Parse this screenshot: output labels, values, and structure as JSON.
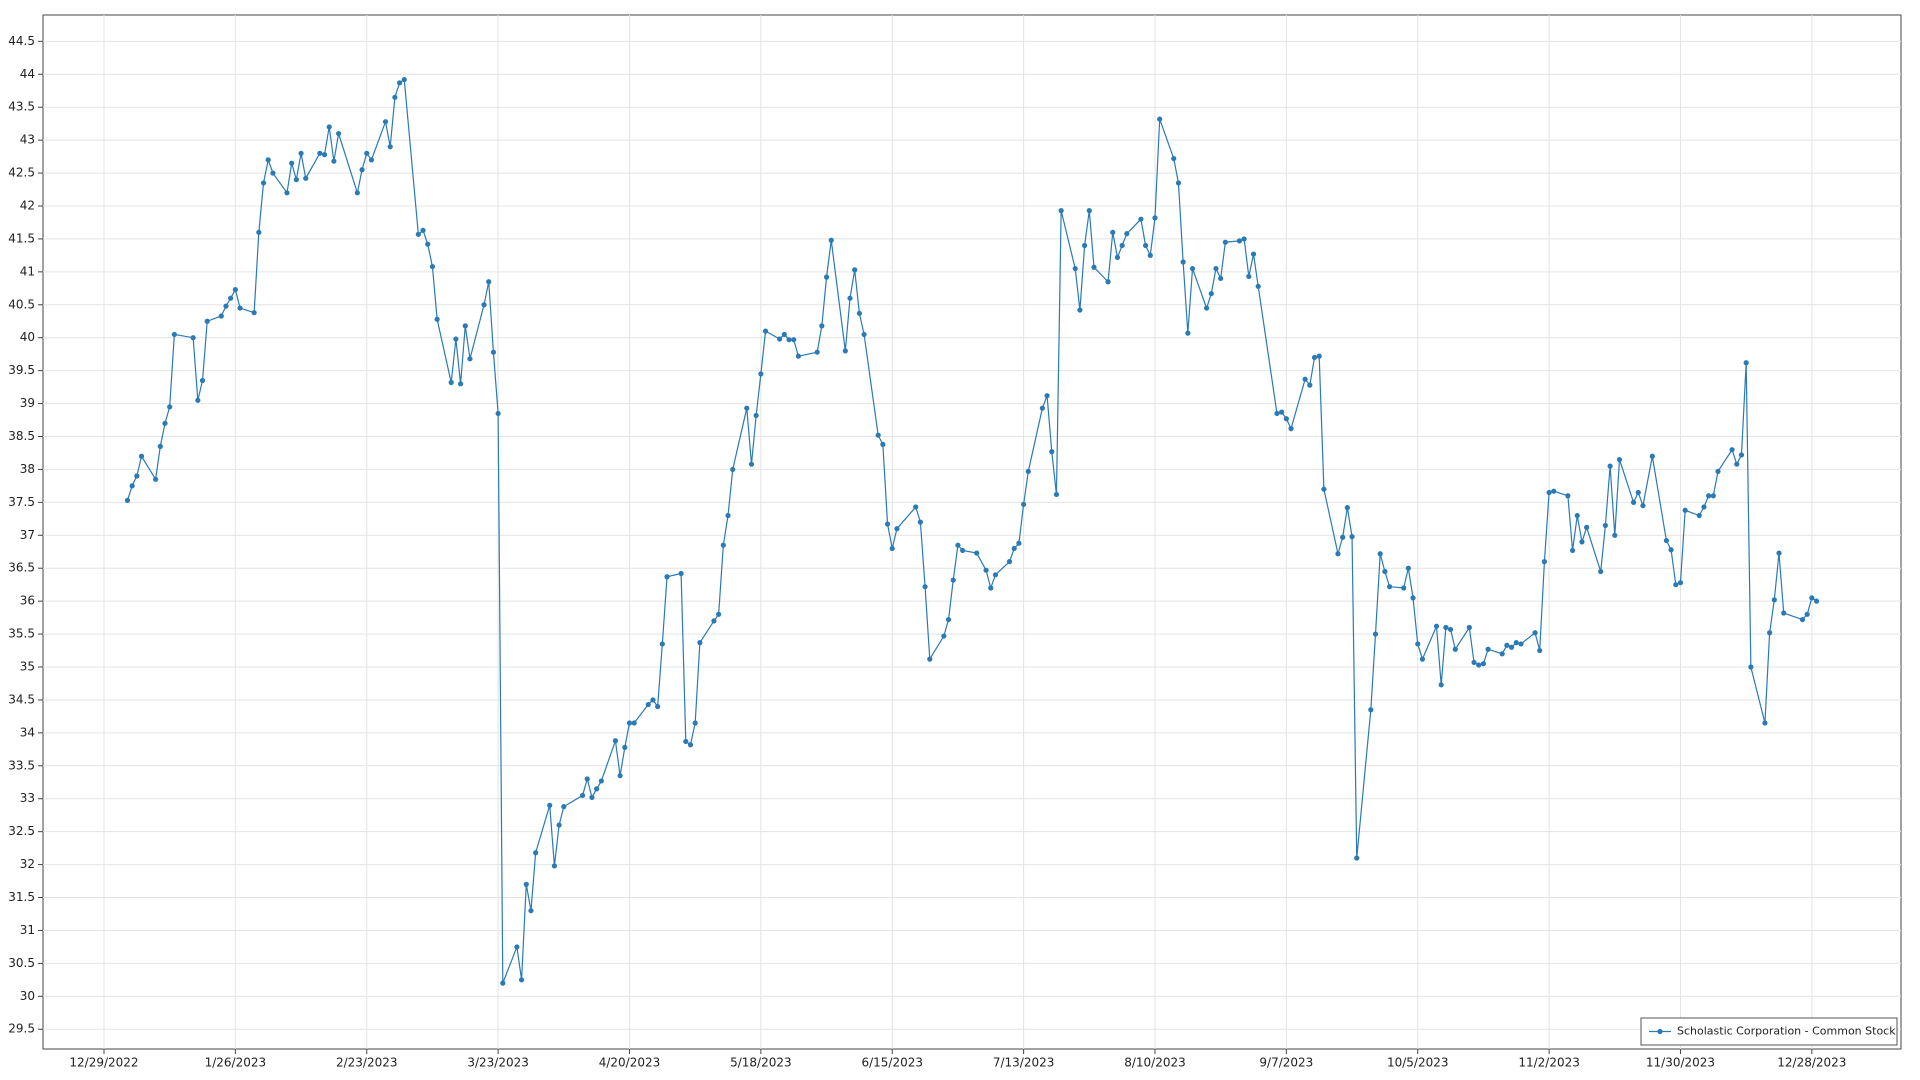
{
  "chart_data": {
    "type": "line",
    "x": [
      "1/3/2023",
      "1/4/2023",
      "1/5/2023",
      "1/6/2023",
      "1/9/2023",
      "1/10/2023",
      "1/11/2023",
      "1/12/2023",
      "1/13/2023",
      "1/17/2023",
      "1/18/2023",
      "1/19/2023",
      "1/20/2023",
      "1/23/2023",
      "1/24/2023",
      "1/25/2023",
      "1/26/2023",
      "1/27/2023",
      "1/30/2023",
      "1/31/2023",
      "2/1/2023",
      "2/2/2023",
      "2/3/2023",
      "2/6/2023",
      "2/7/2023",
      "2/8/2023",
      "2/9/2023",
      "2/10/2023",
      "2/13/2023",
      "2/14/2023",
      "2/15/2023",
      "2/16/2023",
      "2/17/2023",
      "2/21/2023",
      "2/22/2023",
      "2/23/2023",
      "2/24/2023",
      "2/27/2023",
      "2/28/2023",
      "3/1/2023",
      "3/2/2023",
      "3/3/2023",
      "3/6/2023",
      "3/7/2023",
      "3/8/2023",
      "3/9/2023",
      "3/10/2023",
      "3/13/2023",
      "3/14/2023",
      "3/15/2023",
      "3/16/2023",
      "3/17/2023",
      "3/20/2023",
      "3/21/2023",
      "3/22/2023",
      "3/23/2023",
      "3/24/2023",
      "3/27/2023",
      "3/28/2023",
      "3/29/2023",
      "3/30/2023",
      "3/31/2023",
      "4/3/2023",
      "4/4/2023",
      "4/5/2023",
      "4/6/2023",
      "4/10/2023",
      "4/11/2023",
      "4/12/2023",
      "4/13/2023",
      "4/14/2023",
      "4/17/2023",
      "4/18/2023",
      "4/19/2023",
      "4/20/2023",
      "4/21/2023",
      "4/24/2023",
      "4/25/2023",
      "4/26/2023",
      "4/27/2023",
      "4/28/2023",
      "5/1/2023",
      "5/2/2023",
      "5/3/2023",
      "5/4/2023",
      "5/5/2023",
      "5/8/2023",
      "5/9/2023",
      "5/10/2023",
      "5/11/2023",
      "5/12/2023",
      "5/15/2023",
      "5/16/2023",
      "5/17/2023",
      "5/18/2023",
      "5/19/2023",
      "5/22/2023",
      "5/23/2023",
      "5/24/2023",
      "5/25/2023",
      "5/26/2023",
      "5/30/2023",
      "5/31/2023",
      "6/1/2023",
      "6/2/2023",
      "6/5/2023",
      "6/6/2023",
      "6/7/2023",
      "6/8/2023",
      "6/9/2023",
      "6/12/2023",
      "6/13/2023",
      "6/14/2023",
      "6/15/2023",
      "6/16/2023",
      "6/20/2023",
      "6/21/2023",
      "6/22/2023",
      "6/23/2023",
      "6/26/2023",
      "6/27/2023",
      "6/28/2023",
      "6/29/2023",
      "6/30/2023",
      "7/3/2023",
      "7/5/2023",
      "7/6/2023",
      "7/7/2023",
      "7/10/2023",
      "7/11/2023",
      "7/12/2023",
      "7/13/2023",
      "7/14/2023",
      "7/17/2023",
      "7/18/2023",
      "7/19/2023",
      "7/20/2023",
      "7/21/2023",
      "7/24/2023",
      "7/25/2023",
      "7/26/2023",
      "7/27/2023",
      "7/28/2023",
      "7/31/2023",
      "8/1/2023",
      "8/2/2023",
      "8/3/2023",
      "8/4/2023",
      "8/7/2023",
      "8/8/2023",
      "8/9/2023",
      "8/10/2023",
      "8/11/2023",
      "8/14/2023",
      "8/15/2023",
      "8/16/2023",
      "8/17/2023",
      "8/18/2023",
      "8/21/2023",
      "8/22/2023",
      "8/23/2023",
      "8/24/2023",
      "8/25/2023",
      "8/28/2023",
      "8/29/2023",
      "8/30/2023",
      "8/31/2023",
      "9/1/2023",
      "9/5/2023",
      "9/6/2023",
      "9/7/2023",
      "9/8/2023",
      "9/11/2023",
      "9/12/2023",
      "9/13/2023",
      "9/14/2023",
      "9/15/2023",
      "9/18/2023",
      "9/19/2023",
      "9/20/2023",
      "9/21/2023",
      "9/22/2023",
      "9/25/2023",
      "9/26/2023",
      "9/27/2023",
      "9/28/2023",
      "9/29/2023",
      "10/2/2023",
      "10/3/2023",
      "10/4/2023",
      "10/5/2023",
      "10/6/2023",
      "10/9/2023",
      "10/10/2023",
      "10/11/2023",
      "10/12/2023",
      "10/13/2023",
      "10/16/2023",
      "10/17/2023",
      "10/18/2023",
      "10/19/2023",
      "10/20/2023",
      "10/23/2023",
      "10/24/2023",
      "10/25/2023",
      "10/26/2023",
      "10/27/2023",
      "10/30/2023",
      "10/31/2023",
      "11/1/2023",
      "11/2/2023",
      "11/3/2023",
      "11/6/2023",
      "11/7/2023",
      "11/8/2023",
      "11/9/2023",
      "11/10/2023",
      "11/13/2023",
      "11/14/2023",
      "11/15/2023",
      "11/16/2023",
      "11/17/2023",
      "11/20/2023",
      "11/21/2023",
      "11/22/2023",
      "11/24/2023",
      "11/27/2023",
      "11/28/2023",
      "11/29/2023",
      "11/30/2023",
      "12/1/2023",
      "12/4/2023",
      "12/5/2023",
      "12/6/2023",
      "12/7/2023",
      "12/8/2023",
      "12/11/2023",
      "12/12/2023",
      "12/13/2023",
      "12/14/2023",
      "12/15/2023",
      "12/18/2023",
      "12/19/2023",
      "12/20/2023",
      "12/21/2023",
      "12/22/2023",
      "12/26/2023",
      "12/27/2023",
      "12/28/2023",
      "12/29/2023"
    ],
    "series": [
      {
        "name": "Scholastic Corporation - Common Stock",
        "color": "#2a7ab5",
        "values": [
          37.53,
          37.75,
          37.9,
          38.2,
          37.85,
          38.35,
          38.7,
          38.95,
          40.05,
          40.0,
          39.05,
          39.35,
          40.25,
          40.33,
          40.48,
          40.6,
          40.73,
          40.45,
          40.38,
          41.6,
          42.35,
          42.7,
          42.5,
          42.2,
          42.65,
          42.4,
          42.8,
          42.42,
          42.8,
          42.78,
          43.2,
          42.68,
          43.1,
          42.2,
          42.55,
          42.8,
          42.7,
          43.28,
          42.9,
          43.65,
          43.87,
          43.92,
          41.57,
          41.63,
          41.42,
          41.08,
          40.28,
          39.32,
          39.98,
          39.3,
          40.18,
          39.68,
          40.5,
          40.85,
          39.78,
          38.85,
          30.2,
          30.75,
          30.25,
          31.7,
          31.3,
          32.18,
          32.9,
          31.98,
          32.6,
          32.88,
          33.05,
          33.3,
          33.02,
          33.15,
          33.27,
          33.88,
          33.35,
          33.78,
          34.15,
          34.15,
          34.43,
          34.5,
          34.4,
          35.35,
          36.37,
          36.42,
          33.87,
          33.82,
          34.15,
          35.37,
          35.7,
          35.8,
          36.85,
          37.3,
          38.0,
          38.93,
          38.08,
          38.82,
          39.45,
          40.1,
          39.98,
          40.05,
          39.97,
          39.97,
          39.72,
          39.78,
          40.18,
          40.92,
          41.48,
          39.8,
          40.6,
          41.03,
          40.37,
          40.05,
          38.52,
          38.38,
          37.17,
          36.8,
          37.1,
          37.43,
          37.2,
          36.22,
          35.12,
          35.47,
          35.72,
          36.32,
          36.85,
          36.77,
          36.73,
          36.47,
          36.2,
          36.4,
          36.6,
          36.8,
          36.88,
          37.47,
          37.97,
          38.93,
          39.12,
          38.27,
          37.62,
          41.93,
          41.05,
          40.42,
          41.4,
          41.93,
          41.07,
          40.85,
          41.6,
          41.22,
          41.4,
          41.58,
          41.8,
          41.4,
          41.25,
          41.82,
          43.32,
          42.72,
          42.35,
          41.15,
          40.07,
          41.05,
          40.45,
          40.67,
          41.05,
          40.9,
          41.45,
          41.47,
          41.5,
          40.93,
          41.27,
          40.78,
          38.85,
          38.87,
          38.77,
          38.62,
          39.37,
          39.28,
          39.7,
          39.72,
          37.7,
          36.72,
          36.97,
          37.42,
          36.98,
          32.1,
          34.35,
          35.5,
          36.72,
          36.45,
          36.22,
          36.2,
          36.5,
          36.05,
          35.35,
          35.12,
          35.62,
          34.73,
          35.6,
          35.57,
          35.27,
          35.6,
          35.07,
          35.03,
          35.05,
          35.27,
          35.2,
          35.33,
          35.3,
          35.37,
          35.35,
          35.52,
          35.25,
          36.6,
          37.65,
          37.67,
          37.6,
          36.77,
          37.3,
          36.9,
          37.12,
          36.45,
          37.15,
          38.05,
          37.0,
          38.15,
          37.5,
          37.65,
          37.45,
          38.2,
          36.92,
          36.78,
          36.25,
          36.28,
          37.38,
          37.3,
          37.43,
          37.6,
          37.6,
          37.97,
          38.3,
          38.08,
          38.22,
          39.62,
          35.0,
          34.15,
          35.52,
          36.02,
          36.73,
          35.82,
          35.72,
          35.8,
          36.05,
          36.0
        ]
      }
    ],
    "xlim": [
      "12/16/2022",
      "1/16/2024"
    ],
    "xticks": [
      "12/29/2022",
      "1/26/2023",
      "2/23/2023",
      "3/23/2023",
      "4/20/2023",
      "5/18/2023",
      "6/15/2023",
      "7/13/2023",
      "8/10/2023",
      "9/7/2023",
      "10/5/2023",
      "11/2/2023",
      "11/30/2023",
      "12/28/2023"
    ],
    "ylim": [
      29.2,
      44.9
    ],
    "yticks": [
      29.5,
      30,
      30.5,
      31,
      31.5,
      32,
      32.5,
      33,
      33.5,
      34,
      34.5,
      35,
      35.5,
      36,
      36.5,
      37,
      37.5,
      38,
      38.5,
      39,
      39.5,
      40,
      40.5,
      41,
      41.5,
      42,
      42.5,
      43,
      43.5,
      44,
      44.5
    ],
    "grid": true,
    "legend": "lower right"
  }
}
